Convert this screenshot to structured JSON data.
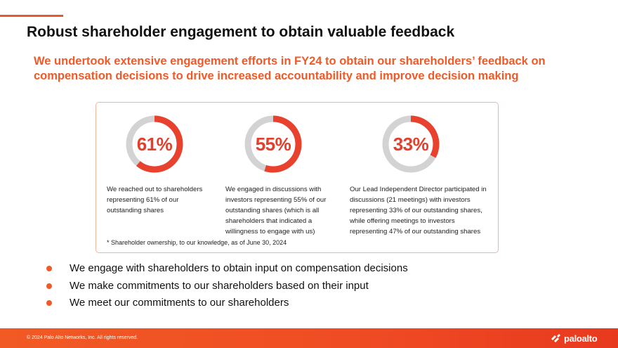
{
  "slide": {
    "title": "Robust shareholder engagement to obtain valuable feedback",
    "subtitle": "We undertook extensive engagement efforts in FY24 to obtain our shareholders’ feedback on compensation decisions to drive increased accountability and improve decision making"
  },
  "stats": [
    {
      "label": "61%",
      "value": 61,
      "text": "We reached out to shareholders representing 61% of our outstanding shares"
    },
    {
      "label": "55%",
      "value": 55,
      "text": "We engaged in discussions with investors representing 55% of our outstanding shares (which is all shareholders that indicated a willingness to engage with us)"
    },
    {
      "label": "33%",
      "value": 33,
      "text": "Our Lead Independent Director participated in discussions (21 meetings) with investors representing 33% of our outstanding shares, while offering meetings to investors representing 47% of our outstanding shares"
    }
  ],
  "footnote": "*   Shareholder ownership, to our knowledge, as of June 30, 2024",
  "bullets": [
    "We engage with shareholders to obtain input on compensation decisions",
    "We make commitments to our shareholders based on their input",
    "We meet our commitments to our shareholders"
  ],
  "footer": {
    "copyright": "© 2024 Palo Alto Networks, Inc. All rights reserved.",
    "brand": "paloalto"
  },
  "colors": {
    "accent": "#f05a28",
    "ring_fill": "#e8412e",
    "ring_track": "#d3d3d3"
  }
}
